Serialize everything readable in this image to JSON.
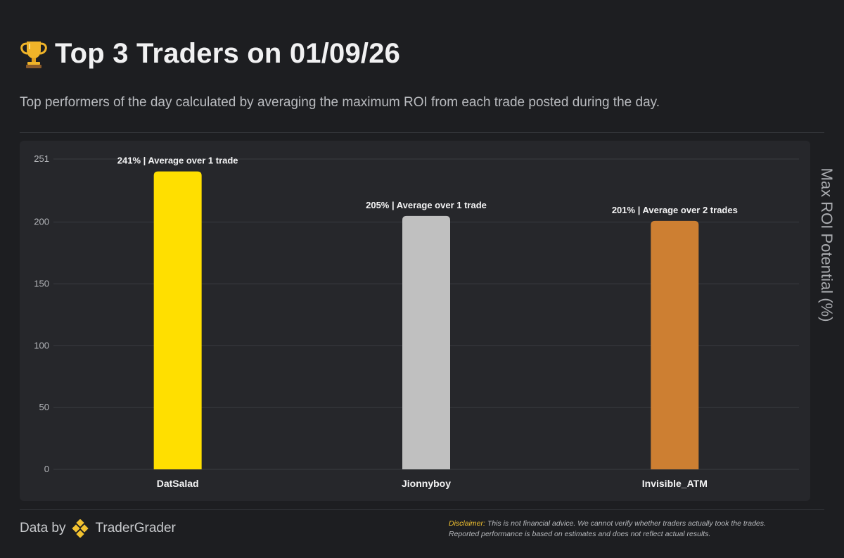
{
  "header": {
    "title": "Top 3 Traders on 01/09/26",
    "subtitle": "Top performers of the day calculated by averaging the maximum ROI from each trade posted during the day."
  },
  "chart_data": {
    "type": "bar",
    "categories": [
      "DatSalad",
      "Jionnyboy",
      "Invisible_ATM"
    ],
    "values": [
      241,
      205,
      201
    ],
    "bar_labels": [
      "241% | Average over 1 trade",
      "205% | Average over 1 trade",
      "201% | Average over 2 trades"
    ],
    "bar_colors": [
      "#ffdf00",
      "#c0c0c0",
      "#cd7f32"
    ],
    "ylabel": "Max ROI Potential (%)",
    "ylim": [
      0,
      251
    ],
    "yticks": [
      0,
      50,
      100,
      150,
      200,
      251
    ],
    "grid": true
  },
  "footer": {
    "data_by": "Data by",
    "brand": "TraderGrader",
    "disclaimer_label": "Disclaimer:",
    "disclaimer_line1": "This is not financial advice. We cannot verify whether traders actually took the trades.",
    "disclaimer_line2": "Reported performance is based on estimates and does not reflect actual results."
  },
  "icons": {
    "title_icon": "trophy-icon",
    "brand_icon": "tradergrader-logo-icon"
  },
  "colors": {
    "background": "#1d1e21",
    "panel": "#26272b",
    "brand_accent": "#f2c230"
  }
}
